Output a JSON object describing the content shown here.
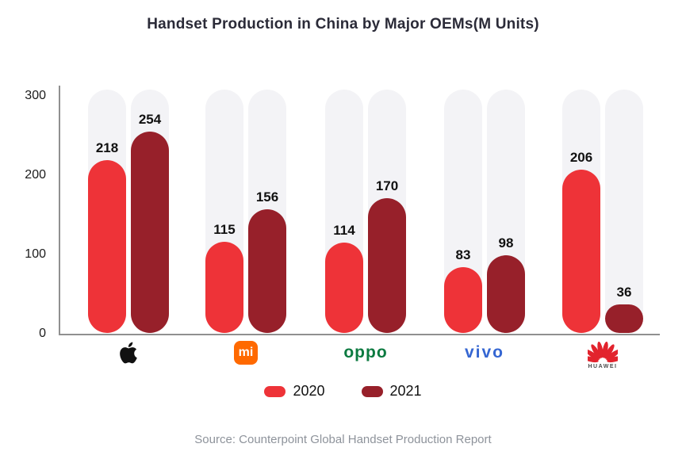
{
  "chart_data": {
    "type": "bar",
    "title": "Handset Production in China by Major OEMs(M Units)",
    "categories": [
      "Apple",
      "Xiaomi",
      "OPPO",
      "vivo",
      "Huawei"
    ],
    "series": [
      {
        "name": "2020",
        "color": "#ee3338",
        "values": [
          218,
          115,
          114,
          83,
          206
        ]
      },
      {
        "name": "2021",
        "color": "#97202a",
        "values": [
          254,
          156,
          170,
          98,
          36
        ]
      }
    ],
    "xlabel": "",
    "ylabel": "",
    "ylim": [
      0,
      300
    ],
    "yticks": [
      0,
      100,
      200,
      300
    ],
    "grid": false,
    "legend_position": "bottom",
    "track_color": "#f3f3f6",
    "value_labels": true,
    "logos": [
      {
        "brand": "Apple",
        "type": "apple-icon",
        "color": "#111111"
      },
      {
        "brand": "Xiaomi",
        "type": "mi-badge",
        "bg": "#ff6900",
        "text": "mi",
        "text_color": "#ffffff"
      },
      {
        "brand": "OPPO",
        "type": "wordmark",
        "text": "oppo",
        "color": "#0c7a40"
      },
      {
        "brand": "vivo",
        "type": "wordmark",
        "text": "vivo",
        "color": "#3566d2"
      },
      {
        "brand": "Huawei",
        "type": "huawei-icon",
        "color": "#e2232d",
        "text": "HUAWEI",
        "text_color": "#4a4a4a"
      }
    ]
  },
  "footer": {
    "source": "Source: Counterpoint Global Handset Production Report"
  }
}
